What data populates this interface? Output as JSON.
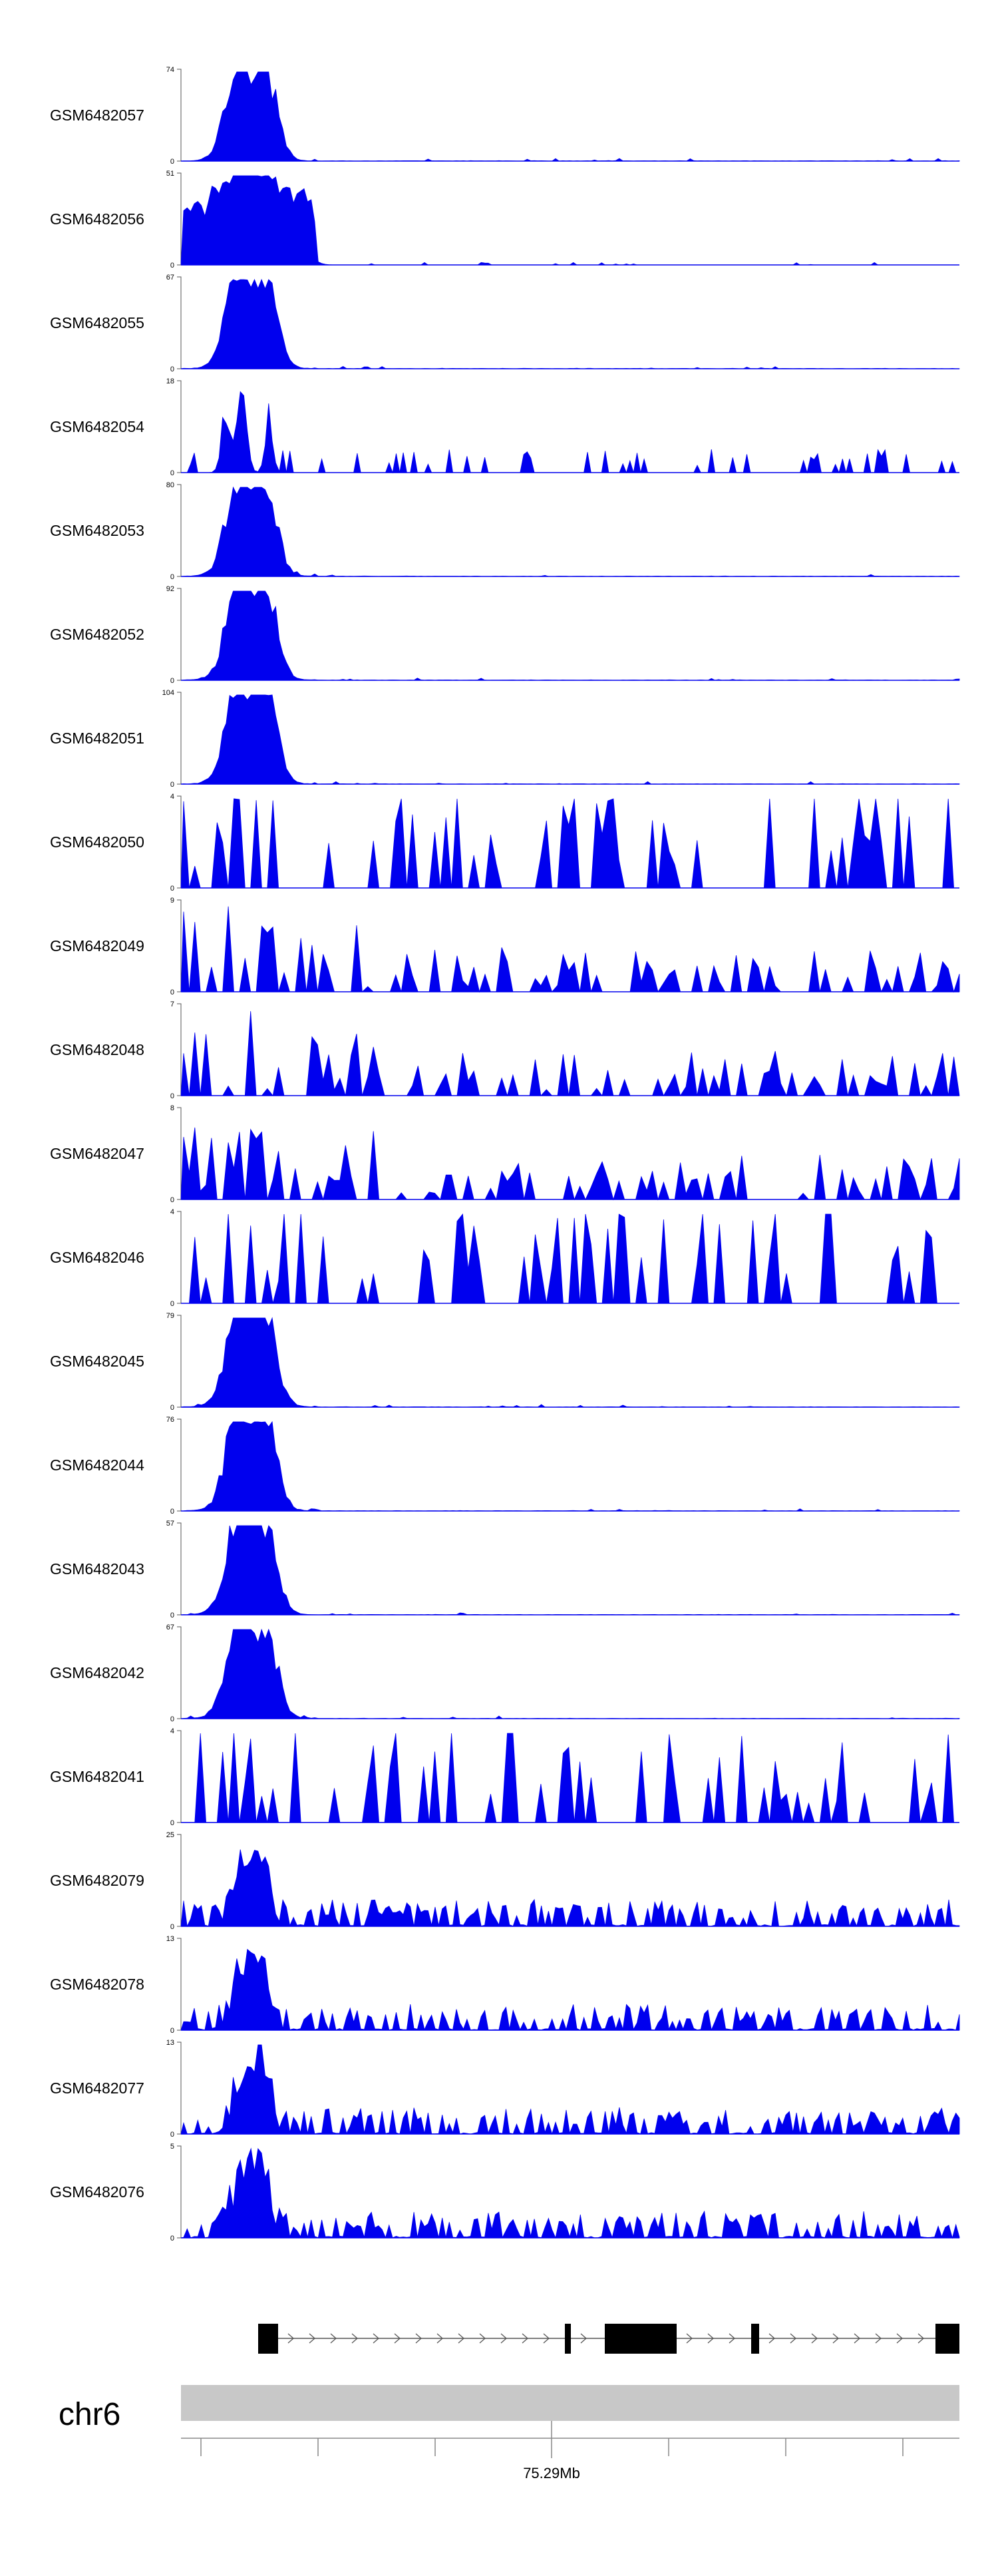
{
  "chart_data": {
    "type": "area",
    "tracks": [
      {
        "name": "GSM6482057",
        "ymax": "74",
        "ymin": "0",
        "profile": "peak"
      },
      {
        "name": "GSM6482056",
        "ymax": "51",
        "ymin": "0",
        "profile": "broad"
      },
      {
        "name": "GSM6482055",
        "ymax": "67",
        "ymin": "0",
        "profile": "peak"
      },
      {
        "name": "GSM6482054",
        "ymax": "18",
        "ymin": "0",
        "profile": "sparse"
      },
      {
        "name": "GSM6482053",
        "ymax": "80",
        "ymin": "0",
        "profile": "peak"
      },
      {
        "name": "GSM6482052",
        "ymax": "92",
        "ymin": "0",
        "profile": "peak"
      },
      {
        "name": "GSM6482051",
        "ymax": "104",
        "ymin": "0",
        "profile": "peak"
      },
      {
        "name": "GSM6482050",
        "ymax": "4",
        "ymin": "0",
        "profile": "spiky"
      },
      {
        "name": "GSM6482049",
        "ymax": "9",
        "ymin": "0",
        "profile": "noisy"
      },
      {
        "name": "GSM6482048",
        "ymax": "7",
        "ymin": "0",
        "profile": "noisy"
      },
      {
        "name": "GSM6482047",
        "ymax": "8",
        "ymin": "0",
        "profile": "noisy"
      },
      {
        "name": "GSM6482046",
        "ymax": "4",
        "ymin": "0",
        "profile": "spiky"
      },
      {
        "name": "GSM6482045",
        "ymax": "79",
        "ymin": "0",
        "profile": "peak"
      },
      {
        "name": "GSM6482044",
        "ymax": "76",
        "ymin": "0",
        "profile": "peak"
      },
      {
        "name": "GSM6482043",
        "ymax": "57",
        "ymin": "0",
        "profile": "peak"
      },
      {
        "name": "GSM6482042",
        "ymax": "67",
        "ymin": "0",
        "profile": "peak"
      },
      {
        "name": "GSM6482041",
        "ymax": "4",
        "ymin": "0",
        "profile": "spiky"
      },
      {
        "name": "GSM6482079",
        "ymax": "25",
        "ymin": "0",
        "profile": "moderate"
      },
      {
        "name": "GSM6482078",
        "ymax": "13",
        "ymin": "0",
        "profile": "moderate"
      },
      {
        "name": "GSM6482077",
        "ymax": "13",
        "ymin": "0",
        "profile": "moderate"
      },
      {
        "name": "GSM6482076",
        "ymax": "5",
        "ymin": "0",
        "profile": "moderate"
      }
    ],
    "chromosome": "chr6",
    "position_label": "75.29Mb",
    "fill_color": "#0000ee",
    "ideogram_color": "#c8c8c8",
    "gene_color": "#000000"
  }
}
